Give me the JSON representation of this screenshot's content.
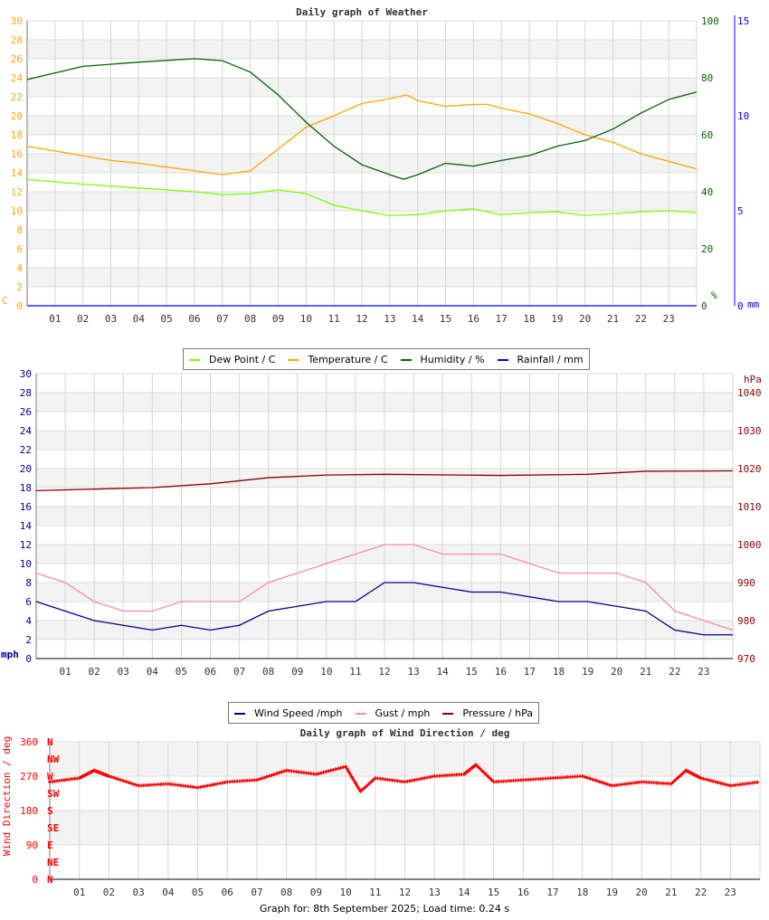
{
  "chart_data": [
    {
      "type": "line",
      "title": "Daily graph of Weather",
      "xlabel": "",
      "hours": [
        "01",
        "02",
        "03",
        "04",
        "05",
        "06",
        "07",
        "08",
        "09",
        "10",
        "11",
        "12",
        "13",
        "14",
        "15",
        "16",
        "17",
        "18",
        "19",
        "20",
        "21",
        "22",
        "23"
      ],
      "y_left": {
        "label": "C",
        "range": [
          0,
          30
        ],
        "ticks": [
          0,
          2,
          4,
          6,
          8,
          10,
          12,
          14,
          16,
          18,
          20,
          22,
          24,
          26,
          28,
          30
        ],
        "color": "#ffa500"
      },
      "y_right": {
        "label": "%",
        "range": [
          0,
          100
        ],
        "ticks": [
          0,
          20,
          40,
          60,
          80,
          100
        ],
        "color": "#006400"
      },
      "y_right2": {
        "label": "mm",
        "range": [
          0,
          15
        ],
        "ticks": [
          0,
          5,
          10,
          15
        ],
        "color": "#0000ff"
      },
      "series": [
        {
          "name": "Dew Point / C",
          "color": "#7cfc00",
          "axis": "left",
          "x": [
            0,
            2,
            4,
            6,
            7,
            8,
            9,
            10,
            11,
            12,
            13,
            14,
            15,
            16,
            17,
            18,
            19,
            20,
            21,
            22,
            23,
            24
          ],
          "y": [
            13.3,
            12.8,
            12.4,
            12.0,
            11.7,
            11.8,
            12.2,
            11.8,
            10.6,
            10.0,
            9.5,
            9.6,
            10.0,
            10.2,
            9.6,
            9.8,
            9.9,
            9.5,
            9.7,
            9.9,
            10.0,
            9.8
          ]
        },
        {
          "name": "Temperature / C",
          "color": "#ffa500",
          "axis": "left",
          "x": [
            0,
            1,
            2,
            3,
            4,
            5,
            6,
            7,
            8,
            9,
            10,
            11,
            12,
            13,
            13.6,
            14,
            15,
            16,
            16.5,
            17,
            18,
            19,
            20,
            21,
            22,
            23,
            24
          ],
          "y": [
            16.8,
            16.3,
            15.8,
            15.3,
            15.0,
            14.6,
            14.2,
            13.8,
            14.2,
            16.5,
            18.8,
            20.0,
            21.3,
            21.8,
            22.2,
            21.6,
            21.0,
            21.2,
            21.2,
            20.8,
            20.2,
            19.2,
            18.0,
            17.2,
            16.0,
            15.2,
            14.4
          ]
        },
        {
          "name": "Humidity / %",
          "color": "#006400",
          "axis": "right",
          "x": [
            0,
            2,
            4,
            6,
            7,
            8,
            9,
            10,
            11,
            12,
            13,
            13.5,
            14,
            15,
            16,
            17,
            18,
            19,
            20,
            21,
            22,
            23,
            24
          ],
          "y": [
            79.4,
            84,
            85.5,
            86.7,
            86,
            82,
            74,
            64.4,
            56,
            49.5,
            46,
            44.4,
            46,
            50,
            49,
            51,
            52.7,
            56,
            58,
            62,
            67.6,
            72.4,
            75
          ]
        },
        {
          "name": "Rainfall / mm",
          "color": "#0000ff",
          "axis": "right2",
          "x": [
            0,
            24
          ],
          "y": [
            0,
            0
          ]
        }
      ]
    },
    {
      "type": "line",
      "title": "",
      "hours": [
        "01",
        "02",
        "03",
        "04",
        "05",
        "06",
        "07",
        "08",
        "09",
        "10",
        "11",
        "12",
        "13",
        "14",
        "15",
        "16",
        "17",
        "18",
        "19",
        "20",
        "21",
        "22",
        "23"
      ],
      "y_left": {
        "label": "mph",
        "range": [
          0,
          30
        ],
        "ticks": [
          0,
          2,
          4,
          6,
          8,
          10,
          12,
          14,
          16,
          18,
          20,
          22,
          24,
          26,
          28,
          30
        ],
        "color": "#00008b"
      },
      "y_right": {
        "label": "hPa",
        "range": [
          970,
          1045
        ],
        "ticks": [
          970,
          980,
          990,
          1000,
          1010,
          1020,
          1030,
          1040
        ],
        "color": "#8b0000"
      },
      "series": [
        {
          "name": "Wind Speed /mph",
          "color": "#00008b",
          "axis": "left",
          "x": [
            0,
            1,
            2,
            3,
            4,
            5,
            6,
            7,
            8,
            9,
            10,
            11,
            12,
            13,
            14,
            15,
            16,
            17,
            18,
            19,
            20,
            21,
            22,
            23,
            24
          ],
          "y": [
            6,
            5,
            4,
            3.5,
            3,
            3.5,
            3,
            3.5,
            5,
            5.5,
            6,
            6,
            8,
            8,
            7.5,
            7,
            7,
            6.5,
            6,
            6,
            5.5,
            5,
            3,
            2.5,
            2.5
          ]
        },
        {
          "name": "Gust / mph",
          "color": "#ff88aa",
          "axis": "left",
          "x": [
            0,
            1,
            2,
            3,
            4,
            5,
            6,
            7,
            8,
            9,
            10,
            11,
            12,
            13,
            14,
            15,
            16,
            17,
            18,
            19,
            20,
            21,
            22,
            23,
            24
          ],
          "y": [
            9,
            8,
            6,
            5,
            5,
            6,
            6,
            6,
            8,
            9,
            10,
            11,
            12,
            12,
            11,
            11,
            11,
            10,
            9,
            9,
            9,
            8,
            5,
            4,
            3
          ]
        },
        {
          "name": "Pressure / hPa",
          "color": "#8b0000",
          "axis": "right",
          "x": [
            0,
            4,
            6,
            8,
            10,
            12,
            16,
            19,
            21,
            24
          ],
          "y": [
            1014.2,
            1015,
            1016,
            1017.6,
            1018.3,
            1018.5,
            1018.2,
            1018.5,
            1019.3,
            1019.4
          ]
        }
      ]
    },
    {
      "type": "scatter",
      "title": "Daily graph of Wind Direction / deg",
      "hours": [
        "01",
        "02",
        "03",
        "04",
        "05",
        "06",
        "07",
        "08",
        "09",
        "10",
        "11",
        "12",
        "13",
        "14",
        "15",
        "16",
        "17",
        "18",
        "19",
        "20",
        "21",
        "22",
        "23"
      ],
      "y_left": {
        "label": "Wind Direction / deg",
        "range": [
          0,
          360
        ],
        "ticks": [
          0,
          90,
          180,
          270,
          360
        ],
        "color": "#ff0000"
      },
      "compass": [
        "N",
        "NE",
        "E",
        "SE",
        "S",
        "SW",
        "W",
        "NW",
        "N"
      ],
      "series": [
        {
          "name": "Wind Direction",
          "color": "#ff0000",
          "x": [
            0,
            1,
            1.5,
            2,
            3,
            4,
            5,
            6,
            7,
            8,
            9,
            10,
            10.5,
            11,
            12,
            13,
            14,
            14.4,
            15,
            16,
            17,
            18,
            19,
            20,
            21,
            21.5,
            22,
            23,
            24
          ],
          "y": [
            255,
            265,
            285,
            270,
            245,
            250,
            240,
            255,
            260,
            285,
            275,
            295,
            230,
            265,
            255,
            270,
            275,
            300,
            255,
            260,
            265,
            270,
            245,
            255,
            250,
            285,
            265,
            245,
            255
          ]
        }
      ]
    }
  ],
  "footer": "Graph for: 8th September 2025; Load time: 0.24 s"
}
